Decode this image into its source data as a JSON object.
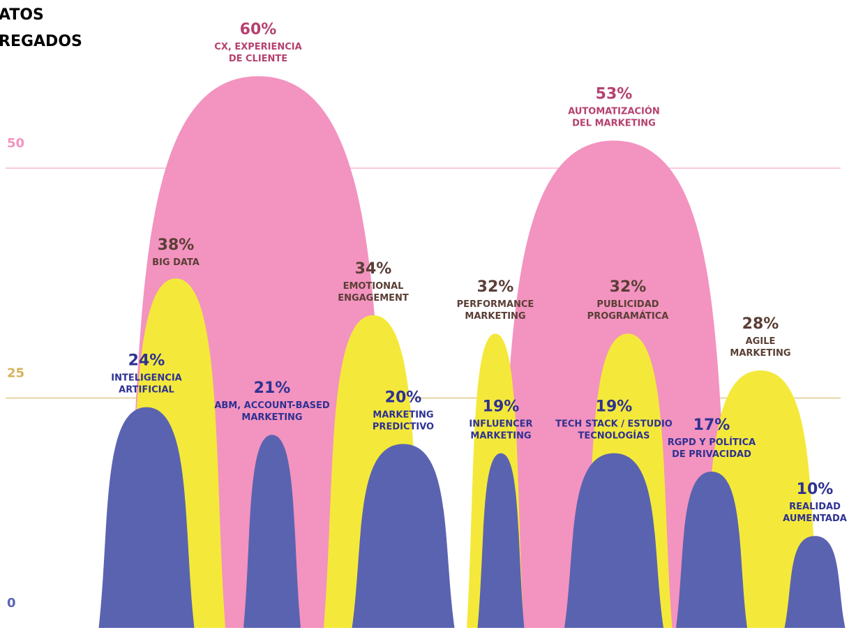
{
  "chart_data": {
    "type": "blob",
    "title": [
      "ATOS",
      "REGADOS"
    ],
    "categories": [
      [
        "INTELIGENCIA",
        "ARTIFICIAL"
      ],
      [
        "BIG DATA"
      ],
      [
        "CX, EXPERIENCIA",
        "DE CLIENTE"
      ],
      [
        "ABM, ACCOUNT-BASED",
        "MARKETING"
      ],
      [
        "EMOTIONAL",
        "ENGAGEMENT"
      ],
      [
        "MARKETING",
        "PREDICTIVO"
      ],
      [
        "PERFORMANCE",
        "MARKETING"
      ],
      [
        "INFLUENCER",
        "MARKETING"
      ],
      [
        "AUTOMATIZACIÓN",
        "DEL MARKETING"
      ],
      [
        "PUBLICIDAD",
        "PROGRAMÁTICA"
      ],
      [
        "TECH STACK / ESTUDIO",
        "TECNOLOGÍAS"
      ],
      [
        "AGILE",
        "MARKETING"
      ],
      [
        "RGPD Y POLÍTICA",
        "DE PRIVACIDAD"
      ],
      [
        "REALIDAD",
        "AUMENTADA"
      ]
    ],
    "values": [
      24,
      38,
      60,
      21,
      34,
      20,
      32,
      19,
      53,
      32,
      19,
      28,
      17,
      10
    ],
    "value_labels": [
      "24%",
      "38%",
      "60%",
      "21%",
      "34%",
      "20%",
      "32%",
      "19%",
      "53%",
      "32%",
      "19%",
      "28%",
      "17%",
      "10%"
    ],
    "colors": [
      "#5a63b0",
      "#f4e93a",
      "#f393bf",
      "#5a63b0",
      "#f4e93a",
      "#5a63b0",
      "#f4e93a",
      "#5a63b0",
      "#f393bf",
      "#f4e93a",
      "#5a63b0",
      "#f4e93a",
      "#5a63b0",
      "#5a63b0"
    ],
    "ylim": [
      0,
      50
    ],
    "yticks": [
      0,
      25,
      50
    ],
    "ytick_colors": [
      "#5a63b0",
      "#d8b15a",
      "#f393bf"
    ],
    "grid": true
  }
}
